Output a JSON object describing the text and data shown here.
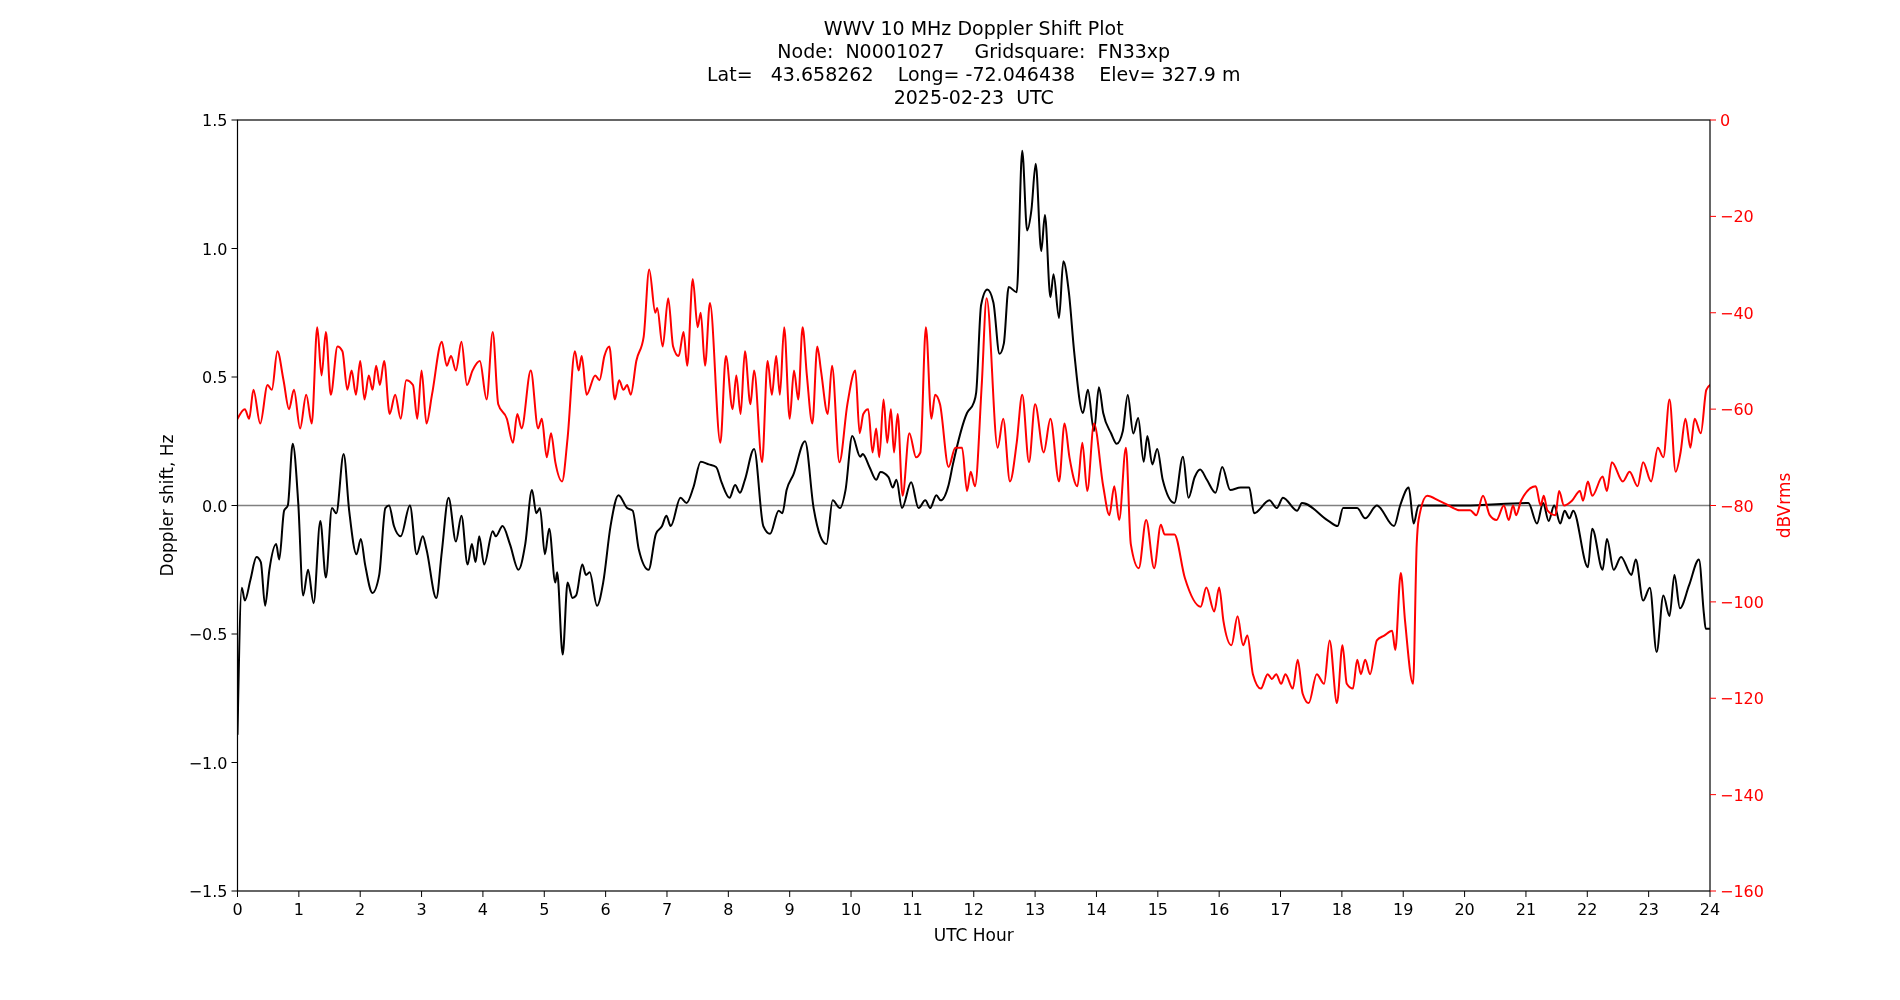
{
  "chart_data": {
    "type": "line",
    "title": "WWV 10 MHz Doppler Shift Plot\nNode:  N0001027     Gridsquare:  FN33xp\nLat=   43.658262    Long= -72.046438    Elev= 327.9 m\n2025-02-23  UTC",
    "xlabel": "UTC Hour",
    "ylabel": "Doppler shift, Hz",
    "y2label": "dBVrms",
    "xlim": [
      0,
      24
    ],
    "xticks": [
      0,
      1,
      2,
      3,
      4,
      5,
      6,
      7,
      8,
      9,
      10,
      11,
      12,
      13,
      14,
      15,
      16,
      17,
      18,
      19,
      20,
      21,
      22,
      23,
      24
    ],
    "ylim": [
      -1.5,
      1.5
    ],
    "yticks": [
      {
        "value": -1.5,
        "label": "−1.5"
      },
      {
        "value": -1.0,
        "label": "−1.0"
      },
      {
        "value": -0.5,
        "label": "−0.5"
      },
      {
        "value": 0,
        "label": "0.0"
      },
      {
        "value": 0.5,
        "label": "0.5"
      },
      {
        "value": 1.0,
        "label": "1.0"
      },
      {
        "value": 1.5,
        "label": "1.5"
      }
    ],
    "y2lim": [
      -160,
      0
    ],
    "y2ticks": [
      {
        "value": -160,
        "label": "−160"
      },
      {
        "value": -140,
        "label": "−140"
      },
      {
        "value": -120,
        "label": "−120"
      },
      {
        "value": -100,
        "label": "−100"
      },
      {
        "value": -80,
        "label": "−80"
      },
      {
        "value": -60,
        "label": "−60"
      },
      {
        "value": -40,
        "label": "−40"
      },
      {
        "value": -20,
        "label": "−20"
      },
      0
    ],
    "ref_lines": [
      {
        "axis": "y",
        "value": 0,
        "color": "#808080"
      }
    ],
    "grid": false,
    "series": [
      {
        "color": "#000000",
        "axis": "y",
        "x": [
          0,
          0.07,
          0.12,
          0.21,
          0.31,
          0.38,
          0.45,
          0.52,
          0.63,
          0.68,
          0.76,
          0.82,
          0.9,
          0.99,
          1.07,
          1.15,
          1.24,
          1.35,
          1.44,
          1.54,
          1.61,
          1.73,
          1.82,
          1.94,
          2.01,
          2.08,
          2.2,
          2.31,
          2.41,
          2.47,
          2.55,
          2.66,
          2.81,
          2.92,
          3.02,
          3.08,
          3.24,
          3.33,
          3.44,
          3.56,
          3.65,
          3.75,
          3.82,
          3.88,
          3.94,
          4.02,
          4.16,
          4.21,
          4.32,
          4.44,
          4.58,
          4.69,
          4.8,
          4.87,
          4.93,
          5.01,
          5.08,
          5.18,
          5.21,
          5.3,
          5.38,
          5.46,
          5.52,
          5.62,
          5.68,
          5.74,
          5.86,
          5.96,
          6.08,
          6.21,
          6.35,
          6.44,
          6.54,
          6.7,
          6.82,
          6.92,
          6.99,
          7.06,
          7.22,
          7.32,
          7.43,
          7.55,
          7.68,
          7.8,
          7.89,
          8.02,
          8.11,
          8.19,
          8.27,
          8.42,
          8.57,
          8.68,
          8.82,
          8.88,
          8.95,
          9.06,
          9.25,
          9.39,
          9.5,
          9.6,
          9.7,
          9.82,
          9.91,
          10.02,
          10.15,
          10.19,
          10.3,
          10.41,
          10.48,
          10.61,
          10.68,
          10.74,
          10.83,
          10.98,
          11.1,
          11.21,
          11.29,
          11.39,
          11.46,
          11.59,
          11.66,
          11.89,
          12.0,
          12.04,
          12.12,
          12.22,
          12.32,
          12.42,
          12.49,
          12.57,
          12.7,
          12.79,
          12.87,
          12.94,
          13.01,
          13.1,
          13.16,
          13.25,
          13.3,
          13.39,
          13.46,
          13.55,
          13.64,
          13.78,
          13.86,
          13.96,
          14.04,
          14.11,
          14.24,
          14.33,
          14.43,
          14.51,
          14.6,
          14.68,
          14.77,
          14.83,
          14.91,
          14.99,
          15.08,
          15.27,
          15.41,
          15.5,
          15.6,
          15.69,
          15.8,
          15.94,
          16.05,
          16.18,
          16.35,
          16.49,
          16.57,
          16.82,
          16.94,
          17.04,
          17.27,
          17.35,
          17.78,
          17.93,
          18.02,
          18.25,
          18.38,
          18.57,
          18.85,
          18.95,
          19.09,
          19.17,
          19.25,
          20.0,
          21.04,
          21.18,
          21.28,
          21.37,
          21.46,
          21.56,
          21.63,
          21.71,
          21.77,
          22.01,
          22.08,
          22.25,
          22.32,
          22.43,
          22.55,
          22.72,
          22.79,
          22.91,
          23.02,
          23.13,
          23.24,
          23.34,
          23.42,
          23.51,
          23.66,
          23.82,
          23.9,
          23.93,
          24.0
        ],
        "values": [
          -0.89,
          -0.32,
          -0.37,
          -0.29,
          -0.2,
          -0.22,
          -0.39,
          -0.25,
          -0.15,
          -0.21,
          -0.02,
          0.0,
          0.24,
          0.01,
          -0.35,
          -0.25,
          -0.38,
          -0.06,
          -0.28,
          -0.01,
          -0.03,
          0.2,
          -0.02,
          -0.19,
          -0.13,
          -0.23,
          -0.34,
          -0.27,
          -0.01,
          0.0,
          -0.08,
          -0.12,
          0.0,
          -0.19,
          -0.12,
          -0.17,
          -0.36,
          -0.18,
          0.03,
          -0.14,
          -0.04,
          -0.23,
          -0.15,
          -0.22,
          -0.12,
          -0.23,
          -0.1,
          -0.12,
          -0.08,
          -0.15,
          -0.25,
          -0.15,
          0.06,
          -0.03,
          -0.01,
          -0.19,
          -0.09,
          -0.3,
          -0.26,
          -0.58,
          -0.3,
          -0.36,
          -0.35,
          -0.23,
          -0.27,
          -0.26,
          -0.39,
          -0.3,
          -0.08,
          0.04,
          -0.01,
          -0.02,
          -0.17,
          -0.25,
          -0.11,
          -0.08,
          -0.04,
          -0.08,
          0.03,
          0.01,
          0.07,
          0.17,
          0.16,
          0.15,
          0.09,
          0.03,
          0.08,
          0.05,
          0.1,
          0.22,
          -0.08,
          -0.11,
          -0.02,
          -0.03,
          0.06,
          0.12,
          0.25,
          -0.01,
          -0.12,
          -0.15,
          0.02,
          -0.01,
          0.06,
          0.27,
          0.19,
          0.2,
          0.15,
          0.1,
          0.13,
          0.11,
          0.07,
          0.1,
          -0.01,
          0.09,
          -0.01,
          0.02,
          -0.01,
          0.04,
          0.02,
          0.08,
          0.16,
          0.36,
          0.4,
          0.44,
          0.78,
          0.84,
          0.79,
          0.59,
          0.63,
          0.85,
          0.83,
          1.38,
          1.07,
          1.15,
          1.33,
          0.99,
          1.13,
          0.81,
          0.9,
          0.73,
          0.95,
          0.83,
          0.59,
          0.36,
          0.45,
          0.29,
          0.46,
          0.36,
          0.28,
          0.24,
          0.29,
          0.43,
          0.28,
          0.34,
          0.17,
          0.27,
          0.16,
          0.22,
          0.1,
          0.01,
          0.19,
          0.03,
          0.11,
          0.14,
          0.1,
          0.05,
          0.15,
          0.06,
          0.07,
          0.07,
          -0.03,
          0.02,
          -0.01,
          0.03,
          -0.02,
          0.01,
          -0.06,
          -0.08,
          -0.01,
          -0.01,
          -0.05,
          0.0,
          -0.08,
          0.0,
          0.07,
          -0.07,
          0.0,
          0.0,
          0.01,
          -0.07,
          0.01,
          -0.06,
          0.0,
          -0.07,
          -0.02,
          -0.05,
          -0.02,
          -0.24,
          -0.09,
          -0.25,
          -0.13,
          -0.25,
          -0.2,
          -0.27,
          -0.21,
          -0.37,
          -0.32,
          -0.57,
          -0.35,
          -0.43,
          -0.27,
          -0.4,
          -0.31,
          -0.21,
          -0.42,
          -0.48,
          -0.48
        ]
      },
      {
        "color": "#ff0000",
        "axis": "y2",
        "x": [
          0,
          0.12,
          0.19,
          0.26,
          0.37,
          0.49,
          0.56,
          0.65,
          0.75,
          0.84,
          0.92,
          1.02,
          1.12,
          1.21,
          1.3,
          1.37,
          1.44,
          1.52,
          1.63,
          1.71,
          1.79,
          1.86,
          1.93,
          2.0,
          2.07,
          2.14,
          2.2,
          2.26,
          2.32,
          2.39,
          2.48,
          2.57,
          2.66,
          2.75,
          2.86,
          2.93,
          3.0,
          3.08,
          3.17,
          3.33,
          3.41,
          3.48,
          3.56,
          3.65,
          3.74,
          3.83,
          3.95,
          4.06,
          4.16,
          4.25,
          4.39,
          4.49,
          4.56,
          4.63,
          4.78,
          4.9,
          4.96,
          5.04,
          5.11,
          5.18,
          5.29,
          5.38,
          5.5,
          5.56,
          5.61,
          5.69,
          5.83,
          5.9,
          5.98,
          6.06,
          6.15,
          6.22,
          6.29,
          6.35,
          6.41,
          6.5,
          6.62,
          6.71,
          6.81,
          6.84,
          6.93,
          7.02,
          7.1,
          7.19,
          7.27,
          7.33,
          7.42,
          7.5,
          7.55,
          7.62,
          7.7,
          7.87,
          7.96,
          8.07,
          8.13,
          8.2,
          8.27,
          8.36,
          8.42,
          8.55,
          8.64,
          8.71,
          8.78,
          8.84,
          8.91,
          9.0,
          9.07,
          9.14,
          9.21,
          9.28,
          9.37,
          9.45,
          9.51,
          9.62,
          9.69,
          9.81,
          9.94,
          10.07,
          10.14,
          10.2,
          10.28,
          10.35,
          10.41,
          10.46,
          10.53,
          10.59,
          10.65,
          10.7,
          10.76,
          10.84,
          10.95,
          11.06,
          11.13,
          11.22,
          11.31,
          11.37,
          11.45,
          11.59,
          11.7,
          11.81,
          11.89,
          11.95,
          12.02,
          12.13,
          12.21,
          12.39,
          12.48,
          12.59,
          12.7,
          12.79,
          12.9,
          13.0,
          13.14,
          13.25,
          13.39,
          13.48,
          13.56,
          13.69,
          13.77,
          13.85,
          13.96,
          14.11,
          14.21,
          14.29,
          14.37,
          14.48,
          14.56,
          14.69,
          14.81,
          14.94,
          15.05,
          15.11,
          15.27,
          15.44,
          15.7,
          15.79,
          15.92,
          16.0,
          16.07,
          16.2,
          16.3,
          16.39,
          16.46,
          16.55,
          16.68,
          16.79,
          16.86,
          16.93,
          17.01,
          17.08,
          17.2,
          17.28,
          17.36,
          17.46,
          17.59,
          17.71,
          17.8,
          17.92,
          18.01,
          18.08,
          18.18,
          18.25,
          18.31,
          18.38,
          18.46,
          18.57,
          18.69,
          18.82,
          18.87,
          18.96,
          19.03,
          19.16,
          19.22,
          19.25,
          19.39,
          19.58,
          19.74,
          19.92,
          20.09,
          20.19,
          20.3,
          20.41,
          20.52,
          20.64,
          20.72,
          20.79,
          20.84,
          20.92,
          21.16,
          21.24,
          21.29,
          21.35,
          21.48,
          21.54,
          21.62,
          21.75,
          21.88,
          21.93,
          22.01,
          22.08,
          22.25,
          22.32,
          22.4,
          22.58,
          22.69,
          22.82,
          22.91,
          23.04,
          23.15,
          23.24,
          23.34,
          23.44,
          23.52,
          23.6,
          23.68,
          23.75,
          23.85,
          23.94,
          24.0
        ],
        "values": [
          -62,
          -60,
          -62,
          -56,
          -63,
          -55,
          -56,
          -48,
          -54,
          -60,
          -56,
          -64,
          -57,
          -63,
          -43,
          -53,
          -44,
          -57,
          -47,
          -48,
          -56,
          -52,
          -57,
          -50,
          -58,
          -53,
          -56,
          -51,
          -55,
          -50,
          -61,
          -57,
          -62,
          -54,
          -55,
          -62,
          -52,
          -63,
          -57,
          -46,
          -51,
          -49,
          -52,
          -46,
          -55,
          -52,
          -50,
          -58,
          -44,
          -59,
          -62,
          -67,
          -61,
          -64,
          -52,
          -64,
          -62,
          -70,
          -65,
          -71,
          -75,
          -66,
          -48,
          -52,
          -49,
          -57,
          -53,
          -54,
          -49,
          -47,
          -58,
          -54,
          -56,
          -55,
          -57,
          -50,
          -45,
          -31,
          -40,
          -39,
          -47,
          -37,
          -47,
          -49,
          -44,
          -51,
          -33,
          -43,
          -40,
          -51,
          -38,
          -67,
          -49,
          -60,
          -53,
          -61,
          -48,
          -59,
          -52,
          -71,
          -50,
          -57,
          -49,
          -57,
          -43,
          -62,
          -52,
          -58,
          -43,
          -53,
          -63,
          -47,
          -52,
          -61,
          -51,
          -71,
          -59,
          -52,
          -65,
          -61,
          -60,
          -69,
          -64,
          -70,
          -58,
          -67,
          -60,
          -69,
          -61,
          -78,
          -65,
          -70,
          -69,
          -43,
          -62,
          -57,
          -59,
          -72,
          -68,
          -68,
          -77,
          -73,
          -76,
          -55,
          -37,
          -68,
          -62,
          -75,
          -67,
          -57,
          -71,
          -59,
          -69,
          -62,
          -75,
          -63,
          -70,
          -76,
          -67,
          -77,
          -63,
          -76,
          -82,
          -76,
          -83,
          -68,
          -88,
          -93,
          -83,
          -93,
          -84,
          -86,
          -86,
          -95,
          -101,
          -97,
          -102,
          -97,
          -104,
          -109,
          -103,
          -109,
          -107,
          -115,
          -118,
          -115,
          -116,
          -115,
          -117,
          -115,
          -118,
          -112,
          -119,
          -121,
          -115,
          -117,
          -108,
          -121,
          -109,
          -117,
          -118,
          -112,
          -115,
          -112,
          -115,
          -108,
          -107,
          -106,
          -110,
          -94,
          -104,
          -117,
          -88,
          -83,
          -78,
          -79,
          -80,
          -81,
          -81,
          -82,
          -78,
          -82,
          -83,
          -80,
          -83,
          -80,
          -82,
          -79,
          -76,
          -80,
          -78,
          -81,
          -82,
          -77,
          -80,
          -79,
          -77,
          -79,
          -75,
          -78,
          -74,
          -77,
          -71,
          -75,
          -73,
          -76,
          -71,
          -75,
          -68,
          -70,
          -58,
          -73,
          -69,
          -62,
          -68,
          -62,
          -65,
          -56,
          -55
        ]
      }
    ]
  }
}
